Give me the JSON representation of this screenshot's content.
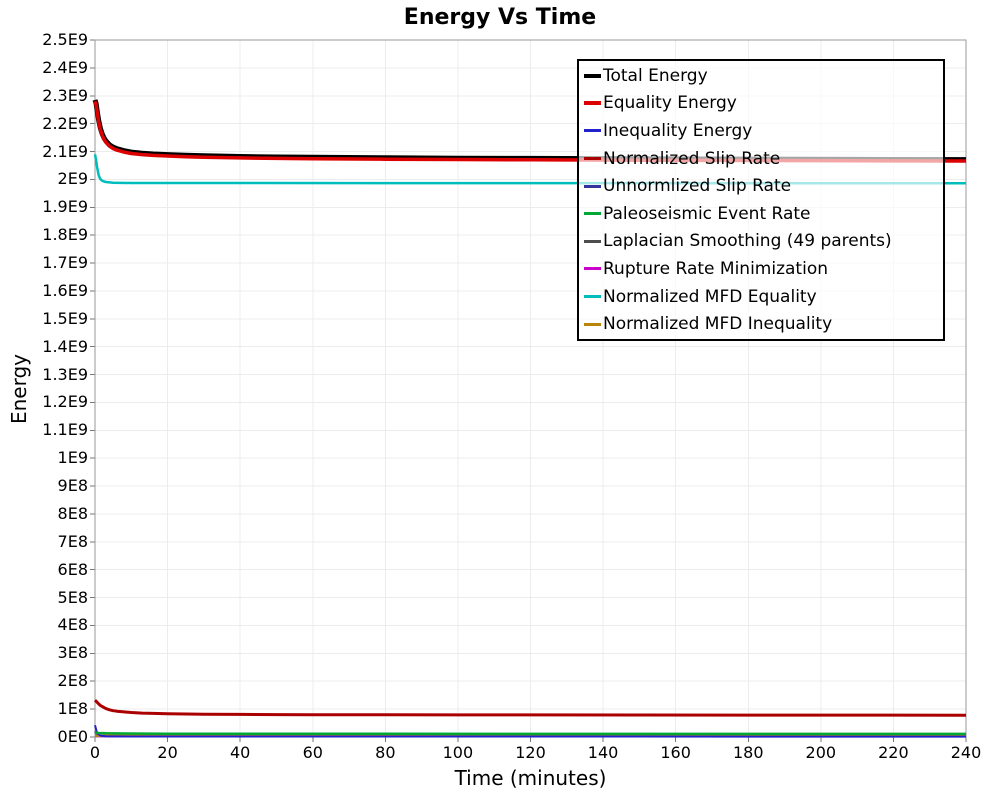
{
  "chart_data": {
    "type": "line",
    "title": "Energy Vs Time",
    "xlabel": "Time (minutes)",
    "ylabel": "Energy",
    "xlim": [
      0,
      240
    ],
    "ylim": [
      0,
      2500000000.0
    ],
    "grid": true,
    "legend_position": "top-right",
    "x_ticks": [
      0,
      20,
      40,
      60,
      80,
      100,
      120,
      140,
      160,
      180,
      200,
      220,
      240
    ],
    "y_tick_step": 100000000.0,
    "y_tick_labels": [
      "0E0",
      "1E8",
      "2E8",
      "3E8",
      "4E8",
      "5E8",
      "6E8",
      "7E8",
      "8E8",
      "9E8",
      "1E9",
      "1.1E9",
      "1.2E9",
      "1.3E9",
      "1.4E9",
      "1.5E9",
      "1.6E9",
      "1.7E9",
      "1.8E9",
      "1.9E9",
      "2E9",
      "2.1E9",
      "2.2E9",
      "2.3E9",
      "2.4E9",
      "2.5E9"
    ],
    "colors": {
      "grid": "#ececec",
      "frame": "#9a9a9a",
      "tick": "#777777",
      "legend_border": "#000000",
      "legend_background": "rgba(255,255,255,0.65)"
    },
    "series": [
      {
        "name": "Total Energy",
        "color": "#000000",
        "width": 5,
        "swatch_h": 4,
        "draw_order": 9,
        "points": [
          [
            0,
            2285000000.0
          ],
          [
            0.3,
            2272000000.0
          ],
          [
            0.6,
            2245000000.0
          ],
          [
            1,
            2213000000.0
          ],
          [
            1.5,
            2183000000.0
          ],
          [
            2,
            2162000000.0
          ],
          [
            2.5,
            2148000000.0
          ],
          [
            3,
            2138000000.0
          ],
          [
            4,
            2124000000.0
          ],
          [
            5,
            2116000000.0
          ],
          [
            6,
            2110000000.0
          ],
          [
            8,
            2103000000.0
          ],
          [
            10,
            2098000000.0
          ],
          [
            13,
            2094000000.0
          ],
          [
            16,
            2091000000.0
          ],
          [
            20,
            2089000000.0
          ],
          [
            25,
            2086500000.0
          ],
          [
            30,
            2084500000.0
          ],
          [
            40,
            2082000000.0
          ],
          [
            50,
            2080500000.0
          ],
          [
            60,
            2079300000.0
          ],
          [
            80,
            2077500000.0
          ],
          [
            100,
            2076200000.0
          ],
          [
            120,
            2075200000.0
          ],
          [
            150,
            2074000000.0
          ],
          [
            180,
            2072800000.0
          ],
          [
            210,
            2071800000.0
          ],
          [
            240,
            2071000000.0
          ]
        ]
      },
      {
        "name": "Equality Energy",
        "color": "#dd0000",
        "width": 3.5,
        "swatch_h": 4,
        "draw_order": 10,
        "points": [
          [
            0,
            2280000000.0
          ],
          [
            0.3,
            2267000000.0
          ],
          [
            0.6,
            2240000000.0
          ],
          [
            1,
            2208000000.0
          ],
          [
            1.5,
            2178000000.0
          ],
          [
            2,
            2157000000.0
          ],
          [
            2.5,
            2143000000.0
          ],
          [
            3,
            2133000000.0
          ],
          [
            4,
            2119000000.0
          ],
          [
            5,
            2111000000.0
          ],
          [
            6,
            2105000000.0
          ],
          [
            8,
            2098000000.0
          ],
          [
            10,
            2093000000.0
          ],
          [
            13,
            2089000000.0
          ],
          [
            16,
            2086000000.0
          ],
          [
            20,
            2084000000.0
          ],
          [
            25,
            2081500000.0
          ],
          [
            30,
            2079500000.0
          ],
          [
            40,
            2077000000.0
          ],
          [
            50,
            2075500000.0
          ],
          [
            60,
            2074300000.0
          ],
          [
            80,
            2072500000.0
          ],
          [
            100,
            2071200000.0
          ],
          [
            120,
            2070200000.0
          ],
          [
            150,
            2069000000.0
          ],
          [
            180,
            2067800000.0
          ],
          [
            210,
            2066800000.0
          ],
          [
            240,
            2066000000.0
          ]
        ]
      },
      {
        "name": "Inequality Energy",
        "color": "#2222cc",
        "width": 2,
        "swatch_h": 3,
        "draw_order": 5,
        "points": [
          [
            0,
            42000000.0
          ],
          [
            0.4,
            22000000.0
          ],
          [
            0.8,
            11000000.0
          ],
          [
            1.5,
            5000000.0
          ],
          [
            3,
            2500000.0
          ],
          [
            10,
            1800000.0
          ],
          [
            240,
            1500000.0
          ]
        ]
      },
      {
        "name": "Normalized Slip Rate",
        "color": "#aa0000",
        "width": 3,
        "swatch_h": 3,
        "draw_order": 7,
        "points": [
          [
            0,
            132000000.0
          ],
          [
            0.5,
            126000000.0
          ],
          [
            1,
            119000000.0
          ],
          [
            1.5,
            113000000.0
          ],
          [
            2,
            109000000.0
          ],
          [
            3,
            102000000.0
          ],
          [
            4,
            97500000.0
          ],
          [
            5,
            94500000.0
          ],
          [
            6,
            92500000.0
          ],
          [
            8,
            90000000.0
          ],
          [
            10,
            87800000.0
          ],
          [
            13,
            85800000.0
          ],
          [
            16,
            84500000.0
          ],
          [
            20,
            83300000.0
          ],
          [
            25,
            82400000.0
          ],
          [
            30,
            81800000.0
          ],
          [
            40,
            81000000.0
          ],
          [
            50,
            80500000.0
          ],
          [
            60,
            80100000.0
          ],
          [
            80,
            79700000.0
          ],
          [
            100,
            79400000.0
          ],
          [
            120,
            79200000.0
          ],
          [
            150,
            78900000.0
          ],
          [
            180,
            78700000.0
          ],
          [
            210,
            78500000.0
          ],
          [
            240,
            78300000.0
          ]
        ]
      },
      {
        "name": "Unnormlized Slip Rate",
        "color": "#333399",
        "width": 2,
        "swatch_h": 3,
        "draw_order": 1,
        "points": [
          [
            0,
            20000000.0
          ],
          [
            0.5,
            9000000.0
          ],
          [
            1.5,
            4000000.0
          ],
          [
            4,
            2800000.0
          ],
          [
            240,
            2400000.0
          ]
        ]
      },
      {
        "name": "Paleoseismic Event Rate",
        "color": "#00a833",
        "width": 2.5,
        "swatch_h": 3,
        "draw_order": 6,
        "points": [
          [
            0,
            16000000.0
          ],
          [
            1,
            14500000.0
          ],
          [
            3,
            13200000.0
          ],
          [
            8,
            12400000.0
          ],
          [
            20,
            11800000.0
          ],
          [
            60,
            11300000.0
          ],
          [
            240,
            11000000.0
          ]
        ]
      },
      {
        "name": "Laplacian Smoothing (49 parents)",
        "color": "#4d4d4d",
        "width": 2,
        "swatch_h": 3,
        "draw_order": 2,
        "points": [
          [
            0,
            5500000.0
          ],
          [
            1,
            4200000.0
          ],
          [
            5,
            3400000.0
          ],
          [
            240,
            3000000.0
          ]
        ]
      },
      {
        "name": "Rupture Rate Minimization",
        "color": "#cc00cc",
        "width": 2,
        "swatch_h": 3,
        "draw_order": 3,
        "points": [
          [
            0,
            3200000.0
          ],
          [
            1,
            2400000.0
          ],
          [
            240,
            2000000.0
          ]
        ]
      },
      {
        "name": "Normalized MFD Equality",
        "color": "#00bdbd",
        "width": 2.5,
        "swatch_h": 3,
        "draw_order": 8,
        "points": [
          [
            0,
            2090000000.0
          ],
          [
            0.3,
            2068000000.0
          ],
          [
            0.6,
            2042000000.0
          ],
          [
            1,
            2016000000.0
          ],
          [
            1.4,
            2002000000.0
          ],
          [
            2,
            1994500000.0
          ],
          [
            3,
            1990500000.0
          ],
          [
            5,
            1988000000.0
          ],
          [
            10,
            1987200000.0
          ],
          [
            240,
            1986000000.0
          ]
        ]
      },
      {
        "name": "Normalized MFD Inequality",
        "color": "#b8860b",
        "width": 2.5,
        "swatch_h": 3,
        "draw_order": 4,
        "points": [
          [
            0,
            5200000.0
          ],
          [
            2,
            4600000.0
          ],
          [
            20,
            4200000.0
          ],
          [
            240,
            4000000.0
          ]
        ]
      }
    ]
  }
}
